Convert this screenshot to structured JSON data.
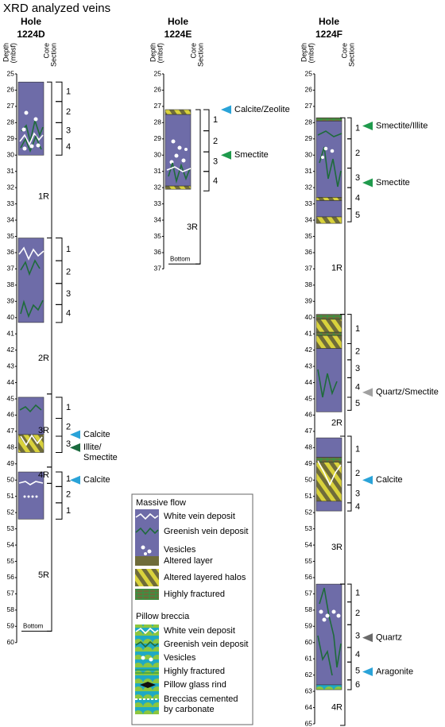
{
  "title": "XRD analyzed veins",
  "axis_labels": {
    "depth": [
      "Depth",
      "(mbsf)"
    ],
    "section": [
      "Core",
      "Section"
    ]
  },
  "holes": [
    {
      "prefix": "Hole",
      "name": "1224D",
      "depth_ticks": [
        25,
        26,
        27,
        28,
        29,
        30,
        31,
        32,
        33,
        34,
        35,
        36,
        37,
        38,
        39,
        40,
        41,
        42,
        43,
        44,
        45,
        46,
        47,
        48,
        49,
        50,
        51,
        52,
        53,
        54,
        55,
        56,
        57,
        58,
        59,
        60
      ],
      "units": [
        {
          "top": 25.5,
          "bottom": 30.0,
          "fill": "#6e6ca8"
        },
        {
          "top": 35.1,
          "bottom": 40.3,
          "fill": "#6e6ca8"
        },
        {
          "top": 44.9,
          "bottom": 47.2,
          "fill": "#6e6ca8"
        },
        {
          "top": 47.2,
          "bottom": 48.3,
          "fill": "url(#halos)"
        },
        {
          "top": 49.5,
          "bottom": 52.4,
          "fill": "#6e6ca8"
        }
      ],
      "cores": [
        {
          "label": "1R",
          "top": 25.5,
          "bottom": 35.1,
          "sections": [
            {
              "label": "1",
              "top": 25.5,
              "bottom": 26.7
            },
            {
              "label": "2",
              "top": 26.7,
              "bottom": 28.0
            },
            {
              "label": "3",
              "top": 28.0,
              "bottom": 29.0
            },
            {
              "label": "4",
              "top": 29.0,
              "bottom": 30.0
            }
          ]
        },
        {
          "label": "2R",
          "top": 35.1,
          "bottom": 44.7,
          "sections": [
            {
              "label": "1",
              "top": 35.1,
              "bottom": 36.5
            },
            {
              "label": "2",
              "top": 36.5,
              "bottom": 37.9
            },
            {
              "label": "3",
              "top": 37.9,
              "bottom": 39.2
            },
            {
              "label": "4",
              "top": 39.2,
              "bottom": 40.3
            }
          ]
        },
        {
          "label": "3R",
          "top": 44.7,
          "bottom": 49.2,
          "sections": [
            {
              "label": "1",
              "top": 44.9,
              "bottom": 46.2
            },
            {
              "label": "2",
              "top": 46.2,
              "bottom": 47.3
            },
            {
              "label": "3",
              "top": 47.3,
              "bottom": 48.3
            }
          ]
        },
        {
          "label": "4R",
          "top": 49.2,
          "bottom": 50.2,
          "sections": [
            {
              "label": "1",
              "top": 49.5,
              "bottom": 50.4
            },
            {
              "label": "2",
              "top": 50.4,
              "bottom": 51.4
            }
          ]
        },
        {
          "label": "5R",
          "top": 50.2,
          "bottom": 59.3,
          "sections": [
            {
              "label": "1",
              "top": 51.4,
              "bottom": 52.4
            }
          ]
        }
      ],
      "annotations": [
        {
          "label": [
            "Calcite"
          ],
          "depth": 47.2,
          "color": "#2aa3d8"
        },
        {
          "label": [
            "Illite/",
            "Smectite"
          ],
          "depth": 48.0,
          "color": "#1b6a3e"
        },
        {
          "label": [
            "Calcite"
          ],
          "depth": 50.0,
          "color": "#2aa3d8"
        }
      ],
      "bottom": "Bottom"
    },
    {
      "prefix": "Hole",
      "name": "1224E",
      "depth_ticks": [
        25,
        26,
        27,
        28,
        29,
        30,
        31,
        32,
        33,
        34,
        35,
        36,
        37
      ],
      "units": [
        {
          "top": 27.2,
          "bottom": 27.5,
          "fill": "url(#halos)"
        },
        {
          "top": 27.5,
          "bottom": 31.9,
          "fill": "#6e6ca8"
        },
        {
          "top": 31.9,
          "bottom": 32.1,
          "fill": "url(#halos)"
        }
      ],
      "cores": [
        {
          "label": "3R",
          "top": 27.2,
          "bottom": 36.7,
          "sections": [
            {
              "label": "1",
              "top": 27.2,
              "bottom": 28.5
            },
            {
              "label": "2",
              "top": 28.5,
              "bottom": 29.8
            },
            {
              "label": "3",
              "top": 29.8,
              "bottom": 31.0
            },
            {
              "label": "4",
              "top": 31.0,
              "bottom": 32.2
            }
          ]
        }
      ],
      "annotations": [
        {
          "label": [
            "Calcite/Zeolite"
          ],
          "depth": 27.2,
          "color": "#2aa3d8"
        },
        {
          "label": [
            "Smectite"
          ],
          "depth": 30.0,
          "color": "#1f9a4c"
        }
      ],
      "bottom": "Bottom"
    },
    {
      "prefix": "Hole",
      "name": "1224F",
      "depth_ticks": [
        25,
        26,
        27,
        28,
        29,
        30,
        31,
        32,
        33,
        34,
        35,
        36,
        37,
        38,
        39,
        40,
        41,
        42,
        43,
        44,
        45,
        46,
        47,
        48,
        49,
        50,
        51,
        52,
        53,
        54,
        55,
        56,
        57,
        58,
        59,
        60,
        61,
        62,
        63,
        64,
        65
      ],
      "units": [
        {
          "top": 27.7,
          "bottom": 27.9,
          "fill": "url(#fractured)"
        },
        {
          "top": 27.9,
          "bottom": 32.6,
          "fill": "#6e6ca8"
        },
        {
          "top": 32.6,
          "bottom": 32.8,
          "fill": "url(#halos)"
        },
        {
          "top": 32.8,
          "bottom": 33.8,
          "fill": "#6e6ca8"
        },
        {
          "top": 33.8,
          "bottom": 34.2,
          "fill": "url(#halos)"
        },
        {
          "top": 39.8,
          "bottom": 40.1,
          "fill": "url(#fractured)"
        },
        {
          "top": 40.1,
          "bottom": 40.9,
          "fill": "url(#halos)"
        },
        {
          "top": 40.9,
          "bottom": 41.1,
          "fill": "url(#fractured)"
        },
        {
          "top": 41.1,
          "bottom": 41.9,
          "fill": "url(#halos)"
        },
        {
          "top": 41.9,
          "bottom": 45.8,
          "fill": "#6e6ca8"
        },
        {
          "top": 47.4,
          "bottom": 48.6,
          "fill": "#6e6ca8"
        },
        {
          "top": 48.6,
          "bottom": 48.9,
          "fill": "url(#fractured)"
        },
        {
          "top": 48.9,
          "bottom": 51.3,
          "fill": "url(#halos)"
        },
        {
          "top": 51.3,
          "bottom": 51.9,
          "fill": "#6e6ca8"
        },
        {
          "top": 56.4,
          "bottom": 62.6,
          "fill": "#6e6ca8"
        },
        {
          "top": 62.6,
          "bottom": 62.9,
          "fill": "url(#pillow)"
        }
      ],
      "cores": [
        {
          "label": "1R",
          "top": 27.7,
          "bottom": 39.8,
          "sections": [
            {
              "label": "1",
              "top": 27.7,
              "bottom": 29.0
            },
            {
              "label": "2",
              "top": 29.0,
              "bottom": 30.8
            },
            {
              "label": "3",
              "top": 30.8,
              "bottom": 32.0
            },
            {
              "label": "4",
              "top": 32.0,
              "bottom": 33.3
            },
            {
              "label": "5",
              "top": 33.3,
              "bottom": 34.1
            }
          ]
        },
        {
          "label": "2R",
          "top": 39.8,
          "bottom": 47.3,
          "sections": [
            {
              "label": "1",
              "top": 39.8,
              "bottom": 41.6
            },
            {
              "label": "2",
              "top": 41.6,
              "bottom": 42.6
            },
            {
              "label": "3",
              "top": 42.6,
              "bottom": 43.7
            },
            {
              "label": "4",
              "top": 43.7,
              "bottom": 44.9
            },
            {
              "label": "5",
              "top": 44.9,
              "bottom": 45.7
            }
          ]
        },
        {
          "label": "3R",
          "top": 47.3,
          "bottom": 56.4,
          "sections": [
            {
              "label": "1",
              "top": 47.3,
              "bottom": 48.9
            },
            {
              "label": "2",
              "top": 48.9,
              "bottom": 50.3
            },
            {
              "label": "3",
              "top": 50.3,
              "bottom": 51.4
            },
            {
              "label": "4",
              "top": 51.4,
              "bottom": 51.9
            }
          ]
        },
        {
          "label": "4R",
          "top": 56.4,
          "bottom": 65.1,
          "sections": [
            {
              "label": "1",
              "top": 56.4,
              "bottom": 57.5
            },
            {
              "label": "2",
              "top": 57.5,
              "bottom": 58.9
            },
            {
              "label": "3",
              "top": 58.9,
              "bottom": 60.3
            },
            {
              "label": "4",
              "top": 60.3,
              "bottom": 61.2
            },
            {
              "label": "5",
              "top": 61.2,
              "bottom": 62.3
            },
            {
              "label": "6",
              "top": 62.3,
              "bottom": 62.9
            }
          ]
        }
      ],
      "annotations": [
        {
          "label": [
            "Smectite/Illite"
          ],
          "depth": 28.2,
          "color": "#1f9a4c"
        },
        {
          "label": [
            "Smectite"
          ],
          "depth": 31.7,
          "color": "#1f9a4c"
        },
        {
          "label": [
            "Quartz/Smectite"
          ],
          "depth": 44.6,
          "color": "#a0a0a0"
        },
        {
          "label": [
            "Calcite"
          ],
          "depth": 50.0,
          "color": "#2aa3d8"
        },
        {
          "label": [
            "Quartz"
          ],
          "depth": 59.7,
          "color": "#6a6a6a"
        },
        {
          "label": [
            "Aragonite"
          ],
          "depth": 61.8,
          "color": "#2aa3d8"
        }
      ]
    }
  ],
  "legend": {
    "massive": {
      "title": "Massive flow",
      "items": [
        "White vein deposit",
        "Greenish vein deposit",
        "Vesicles",
        "Altered layer",
        "Altered layered halos",
        "Highly fractured"
      ]
    },
    "pillow": {
      "title": "Pillow breccia",
      "items": [
        "White vein deposit",
        "Greenish vein deposit",
        "Vesicles",
        "Highly fractured",
        "Pillow glass rind"
      ],
      "last": [
        "Breccias cemented",
        "by carbonate"
      ]
    }
  }
}
